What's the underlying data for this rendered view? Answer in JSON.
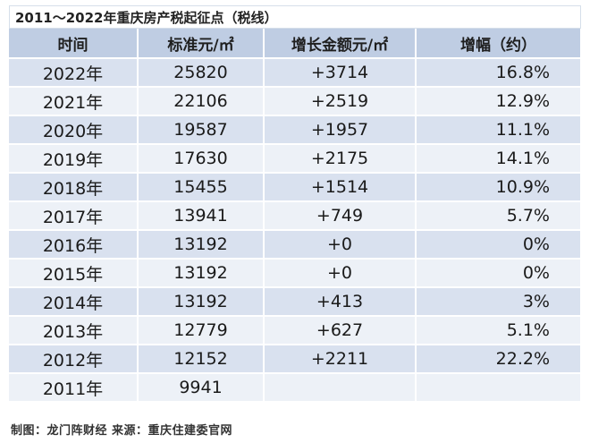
{
  "title": "2011～2022年重庆房产税起征点（税线）",
  "headers": [
    "时间",
    "标准元/㎡",
    "增长金额元/㎡",
    "增幅（约）"
  ],
  "rows": [
    {
      "year": "2022年",
      "standard": "25820",
      "increase": "+3714",
      "growth": "16.8%"
    },
    {
      "year": "2021年",
      "standard": "22106",
      "increase": "+2519",
      "growth": "12.9%"
    },
    {
      "year": "2020年",
      "standard": "19587",
      "increase": "+1957",
      "growth": "11.1%"
    },
    {
      "year": "2019年",
      "standard": "17630",
      "increase": "+2175",
      "growth": "14.1%"
    },
    {
      "year": "2018年",
      "standard": "15455",
      "increase": "+1514",
      "growth": "10.9%"
    },
    {
      "year": "2017年",
      "standard": "13941",
      "increase": "+749",
      "growth": "5.7%"
    },
    {
      "year": "2016年",
      "standard": "13192",
      "increase": "+0",
      "growth": "0%"
    },
    {
      "year": "2015年",
      "standard": "13192",
      "increase": "+0",
      "growth": "0%"
    },
    {
      "year": "2014年",
      "standard": "13192",
      "increase": "+413",
      "growth": "3%"
    },
    {
      "year": "2013年",
      "standard": "12779",
      "increase": "+627",
      "growth": "5.1%"
    },
    {
      "year": "2012年",
      "standard": "12152",
      "increase": "+2211",
      "growth": "22.2%"
    },
    {
      "year": "2011年",
      "standard": "9941",
      "increase": "",
      "growth": ""
    }
  ],
  "footer": "制图：龙门阵财经 来源：重庆住建委官网",
  "colors": {
    "header_bg": "#bfcde3",
    "row_odd": "#d9e1ef",
    "row_even": "#edf1f7"
  }
}
